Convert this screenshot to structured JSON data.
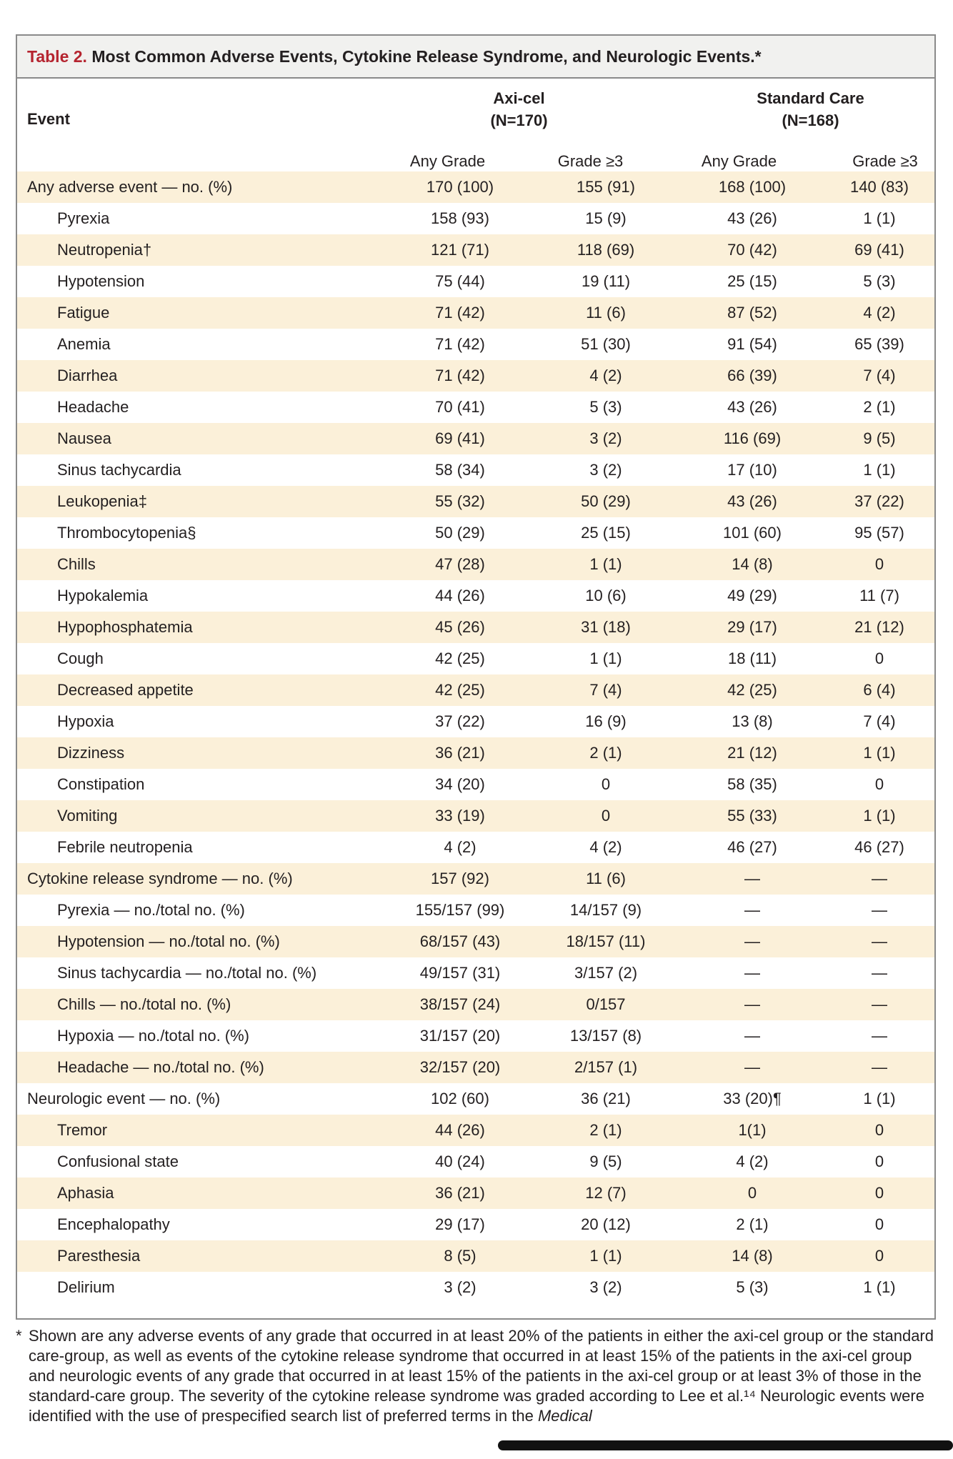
{
  "title": {
    "number": "Table 2.",
    "text": " Most Common Adverse Events, Cytokine Release Syndrome, and Neurologic Events.*"
  },
  "header": {
    "event": "Event",
    "group1": {
      "name": "Axi-cel",
      "n": "(N=170)"
    },
    "group2": {
      "name": "Standard Care",
      "n": "(N=168)"
    },
    "subcols": [
      "Any Grade",
      "Grade ≥3",
      "Any Grade",
      "Grade ≥3"
    ]
  },
  "rows": [
    {
      "label": "Any adverse event — no. (%)",
      "values": [
        "170 (100)",
        "155 (91)",
        "168 (100)",
        "140 (83)"
      ],
      "indent": false,
      "shaded": true
    },
    {
      "label": "Pyrexia",
      "values": [
        "158 (93)",
        "15 (9)",
        "43 (26)",
        "1 (1)"
      ],
      "indent": true,
      "shaded": false
    },
    {
      "label": "Neutropenia†",
      "values": [
        "121 (71)",
        "118 (69)",
        "70 (42)",
        "69 (41)"
      ],
      "indent": true,
      "shaded": true
    },
    {
      "label": "Hypotension",
      "values": [
        "75 (44)",
        "19 (11)",
        "25 (15)",
        "5 (3)"
      ],
      "indent": true,
      "shaded": false
    },
    {
      "label": "Fatigue",
      "values": [
        "71 (42)",
        "11 (6)",
        "87 (52)",
        "4 (2)"
      ],
      "indent": true,
      "shaded": true
    },
    {
      "label": "Anemia",
      "values": [
        "71 (42)",
        "51 (30)",
        "91 (54)",
        "65 (39)"
      ],
      "indent": true,
      "shaded": false
    },
    {
      "label": "Diarrhea",
      "values": [
        "71 (42)",
        "4 (2)",
        "66 (39)",
        "7 (4)"
      ],
      "indent": true,
      "shaded": true
    },
    {
      "label": "Headache",
      "values": [
        "70 (41)",
        "5 (3)",
        "43 (26)",
        "2 (1)"
      ],
      "indent": true,
      "shaded": false
    },
    {
      "label": "Nausea",
      "values": [
        "69 (41)",
        "3 (2)",
        "116 (69)",
        "9 (5)"
      ],
      "indent": true,
      "shaded": true
    },
    {
      "label": "Sinus tachycardia",
      "values": [
        "58 (34)",
        "3 (2)",
        "17 (10)",
        "1 (1)"
      ],
      "indent": true,
      "shaded": false
    },
    {
      "label": "Leukopenia‡",
      "values": [
        "55 (32)",
        "50 (29)",
        "43 (26)",
        "37 (22)"
      ],
      "indent": true,
      "shaded": true
    },
    {
      "label": "Thrombocytopenia§",
      "values": [
        "50 (29)",
        "25 (15)",
        "101 (60)",
        "95 (57)"
      ],
      "indent": true,
      "shaded": false
    },
    {
      "label": "Chills",
      "values": [
        "47 (28)",
        "1 (1)",
        "14 (8)",
        "0"
      ],
      "indent": true,
      "shaded": true
    },
    {
      "label": "Hypokalemia",
      "values": [
        "44 (26)",
        "10 (6)",
        "49 (29)",
        "11 (7)"
      ],
      "indent": true,
      "shaded": false
    },
    {
      "label": "Hypophosphatemia",
      "values": [
        "45 (26)",
        "31 (18)",
        "29 (17)",
        "21 (12)"
      ],
      "indent": true,
      "shaded": true
    },
    {
      "label": "Cough",
      "values": [
        "42 (25)",
        "1 (1)",
        "18 (11)",
        "0"
      ],
      "indent": true,
      "shaded": false
    },
    {
      "label": "Decreased appetite",
      "values": [
        "42 (25)",
        "7 (4)",
        "42 (25)",
        "6 (4)"
      ],
      "indent": true,
      "shaded": true
    },
    {
      "label": "Hypoxia",
      "values": [
        "37 (22)",
        "16 (9)",
        "13 (8)",
        "7 (4)"
      ],
      "indent": true,
      "shaded": false
    },
    {
      "label": "Dizziness",
      "values": [
        "36 (21)",
        "2 (1)",
        "21 (12)",
        "1 (1)"
      ],
      "indent": true,
      "shaded": true
    },
    {
      "label": "Constipation",
      "values": [
        "34 (20)",
        "0",
        "58 (35)",
        "0"
      ],
      "indent": true,
      "shaded": false
    },
    {
      "label": "Vomiting",
      "values": [
        "33 (19)",
        "0",
        "55 (33)",
        "1 (1)"
      ],
      "indent": true,
      "shaded": true
    },
    {
      "label": "Febrile neutropenia",
      "values": [
        "4 (2)",
        "4 (2)",
        "46 (27)",
        "46 (27)"
      ],
      "indent": true,
      "shaded": false
    },
    {
      "label": "Cytokine release syndrome — no. (%)",
      "values": [
        "157 (92)",
        "11 (6)",
        "—",
        "—"
      ],
      "indent": false,
      "shaded": true
    },
    {
      "label": "Pyrexia — no./total no. (%)",
      "values": [
        "155/157 (99)",
        "14/157 (9)",
        "—",
        "—"
      ],
      "indent": true,
      "shaded": false
    },
    {
      "label": "Hypotension — no./total no. (%)",
      "values": [
        "68/157 (43)",
        "18/157 (11)",
        "—",
        "—"
      ],
      "indent": true,
      "shaded": true
    },
    {
      "label": "Sinus tachycardia — no./total no. (%)",
      "values": [
        "49/157 (31)",
        "3/157 (2)",
        "—",
        "—"
      ],
      "indent": true,
      "shaded": false
    },
    {
      "label": "Chills — no./total no. (%)",
      "values": [
        "38/157 (24)",
        "0/157",
        "—",
        "—"
      ],
      "indent": true,
      "shaded": true
    },
    {
      "label": "Hypoxia — no./total no. (%)",
      "values": [
        "31/157 (20)",
        "13/157 (8)",
        "—",
        "—"
      ],
      "indent": true,
      "shaded": false
    },
    {
      "label": "Headache — no./total no. (%)",
      "values": [
        "32/157 (20)",
        "2/157 (1)",
        "—",
        "—"
      ],
      "indent": true,
      "shaded": true
    },
    {
      "label": "Neurologic event — no. (%)",
      "values": [
        "102 (60)",
        "36 (21)",
        "33 (20)¶",
        "1 (1)"
      ],
      "indent": false,
      "shaded": false
    },
    {
      "label": "Tremor",
      "values": [
        "44 (26)",
        "2 (1)",
        "1(1)",
        "0"
      ],
      "indent": true,
      "shaded": true
    },
    {
      "label": "Confusional state",
      "values": [
        "40 (24)",
        "9 (5)",
        "4 (2)",
        "0"
      ],
      "indent": true,
      "shaded": false
    },
    {
      "label": "Aphasia",
      "values": [
        "36 (21)",
        "12 (7)",
        "0",
        "0"
      ],
      "indent": true,
      "shaded": true
    },
    {
      "label": "Encephalopathy",
      "values": [
        "29 (17)",
        "20 (12)",
        "2 (1)",
        "0"
      ],
      "indent": true,
      "shaded": false
    },
    {
      "label": "Paresthesia",
      "values": [
        "8 (5)",
        "1 (1)",
        "14 (8)",
        "0"
      ],
      "indent": true,
      "shaded": true
    },
    {
      "label": "Delirium",
      "values": [
        "3 (2)",
        "3 (2)",
        "5 (3)",
        "1 (1)"
      ],
      "indent": true,
      "shaded": false
    }
  ],
  "footnote": {
    "marker": "*",
    "text": "Shown are any adverse events of any grade that occurred in at least 20% of the patients in either the axi-cel group or the standard care-group, as well as events of the cytokine release syndrome that occurred in at least 15% of the patients in the axi-cel group and neurologic events of any grade that occurred in at least 15% of the patients in the axi-cel group or at least 3% of those in the standard-care group. The severity of the cytokine release syndrome was graded according to Lee et al.¹⁴ Neurologic events were identified with the use of prespecified search list of preferred terms in the",
    "italic_tail": "Medical"
  }
}
